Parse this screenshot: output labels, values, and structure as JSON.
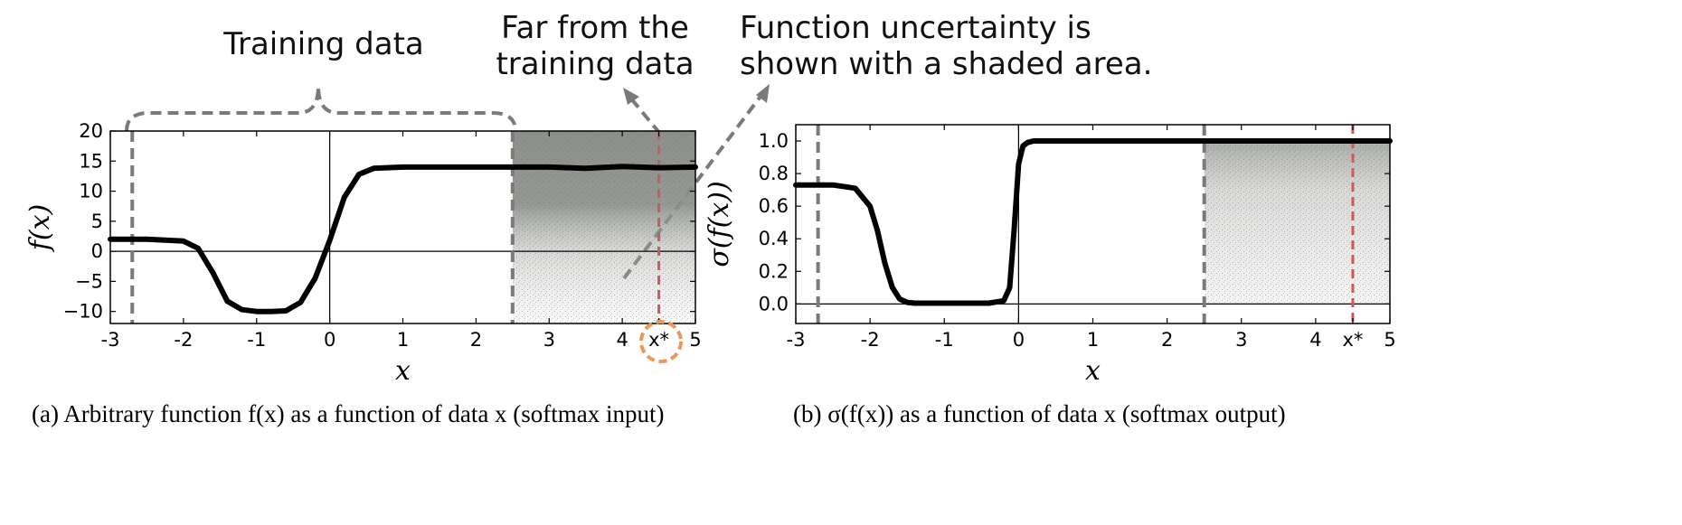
{
  "annotations": {
    "training": "Training data",
    "far_line1": "Far from the",
    "far_line2": "training data",
    "unc_line1": "Function uncertainty is",
    "unc_line2": "shown with a shaded area."
  },
  "colors": {
    "curve": "#000000",
    "shade": "#8c8f8a",
    "gray_dash": "#7a7a7a",
    "red_dash": "#cc5a5a",
    "orange_circle": "#f0965a"
  },
  "chart_data": [
    {
      "type": "line",
      "xlabel": "x",
      "ylabel": "f(x)",
      "xlim": [
        -3,
        5
      ],
      "ylim": [
        -12,
        20
      ],
      "xticks": [
        "-3",
        "-2",
        "-1",
        "0",
        "1",
        "2",
        "3",
        "4",
        "x*",
        "5"
      ],
      "xtick_values": [
        -3,
        -2,
        -1,
        0,
        1,
        2,
        3,
        4,
        4.5,
        5
      ],
      "yticks": [
        "20",
        "15",
        "10",
        "5",
        "0",
        "−5",
        "−10"
      ],
      "ytick_values": [
        20,
        15,
        10,
        5,
        0,
        -5,
        -10
      ],
      "training_range": [
        -2.7,
        2.5
      ],
      "x_star": 4.5,
      "series": [
        {
          "x": [
            -3,
            -2.5,
            -2.0,
            -1.8,
            -1.6,
            -1.4,
            -1.2,
            -1.0,
            -0.8,
            -0.6,
            -0.4,
            -0.2,
            0.0,
            0.2,
            0.4,
            0.6,
            1.0,
            1.5,
            2.0,
            2.5,
            3.0,
            3.5,
            4.0,
            4.5,
            5.0
          ],
          "y": [
            2,
            2,
            1.7,
            0.5,
            -3.5,
            -8.3,
            -9.7,
            -10,
            -10,
            -9.9,
            -8.5,
            -4.5,
            1.8,
            9,
            12.8,
            13.8,
            14,
            14,
            14,
            14,
            14,
            13.8,
            14.1,
            13.9,
            14
          ]
        }
      ],
      "uncertainty": {
        "x_range": [
          2.5,
          5
        ],
        "y_range": [
          -12,
          20
        ]
      },
      "caption": "(a) Arbitrary function f(x) as a function of data x (softmax input)"
    },
    {
      "type": "line",
      "xlabel": "x",
      "ylabel": "σ(f(x))",
      "xlim": [
        -3,
        5
      ],
      "ylim": [
        -0.12,
        1.1
      ],
      "xticks": [
        "-3",
        "-2",
        "-1",
        "0",
        "1",
        "2",
        "3",
        "4",
        "x*",
        "5"
      ],
      "xtick_values": [
        -3,
        -2,
        -1,
        0,
        1,
        2,
        3,
        4,
        4.5,
        5
      ],
      "yticks": [
        "1.0",
        "0.8",
        "0.6",
        "0.4",
        "0.2",
        "0.0"
      ],
      "ytick_values": [
        1.0,
        0.8,
        0.6,
        0.4,
        0.2,
        0.0
      ],
      "training_range": [
        -2.7,
        2.5
      ],
      "x_star": 4.5,
      "series": [
        {
          "x": [
            -3,
            -2.5,
            -2.2,
            -2.0,
            -1.9,
            -1.8,
            -1.7,
            -1.6,
            -1.5,
            -1.4,
            -1.2,
            -0.8,
            -0.4,
            -0.2,
            -0.12,
            -0.06,
            0.0,
            0.06,
            0.12,
            0.2,
            0.4,
            1.0,
            2.0,
            3.0,
            4.0,
            5.0
          ],
          "y": [
            0.73,
            0.73,
            0.71,
            0.6,
            0.45,
            0.25,
            0.1,
            0.03,
            0.01,
            0.005,
            0.005,
            0.005,
            0.005,
            0.02,
            0.1,
            0.45,
            0.86,
            0.97,
            0.99,
            1.0,
            1.0,
            1.0,
            1.0,
            1.0,
            1.0,
            1.0
          ]
        }
      ],
      "uncertainty": {
        "x_range": [
          2.5,
          5
        ],
        "y_range": [
          0,
          1.0
        ]
      },
      "caption": "(b) σ(f(x)) as a function of data x (softmax output)"
    }
  ]
}
